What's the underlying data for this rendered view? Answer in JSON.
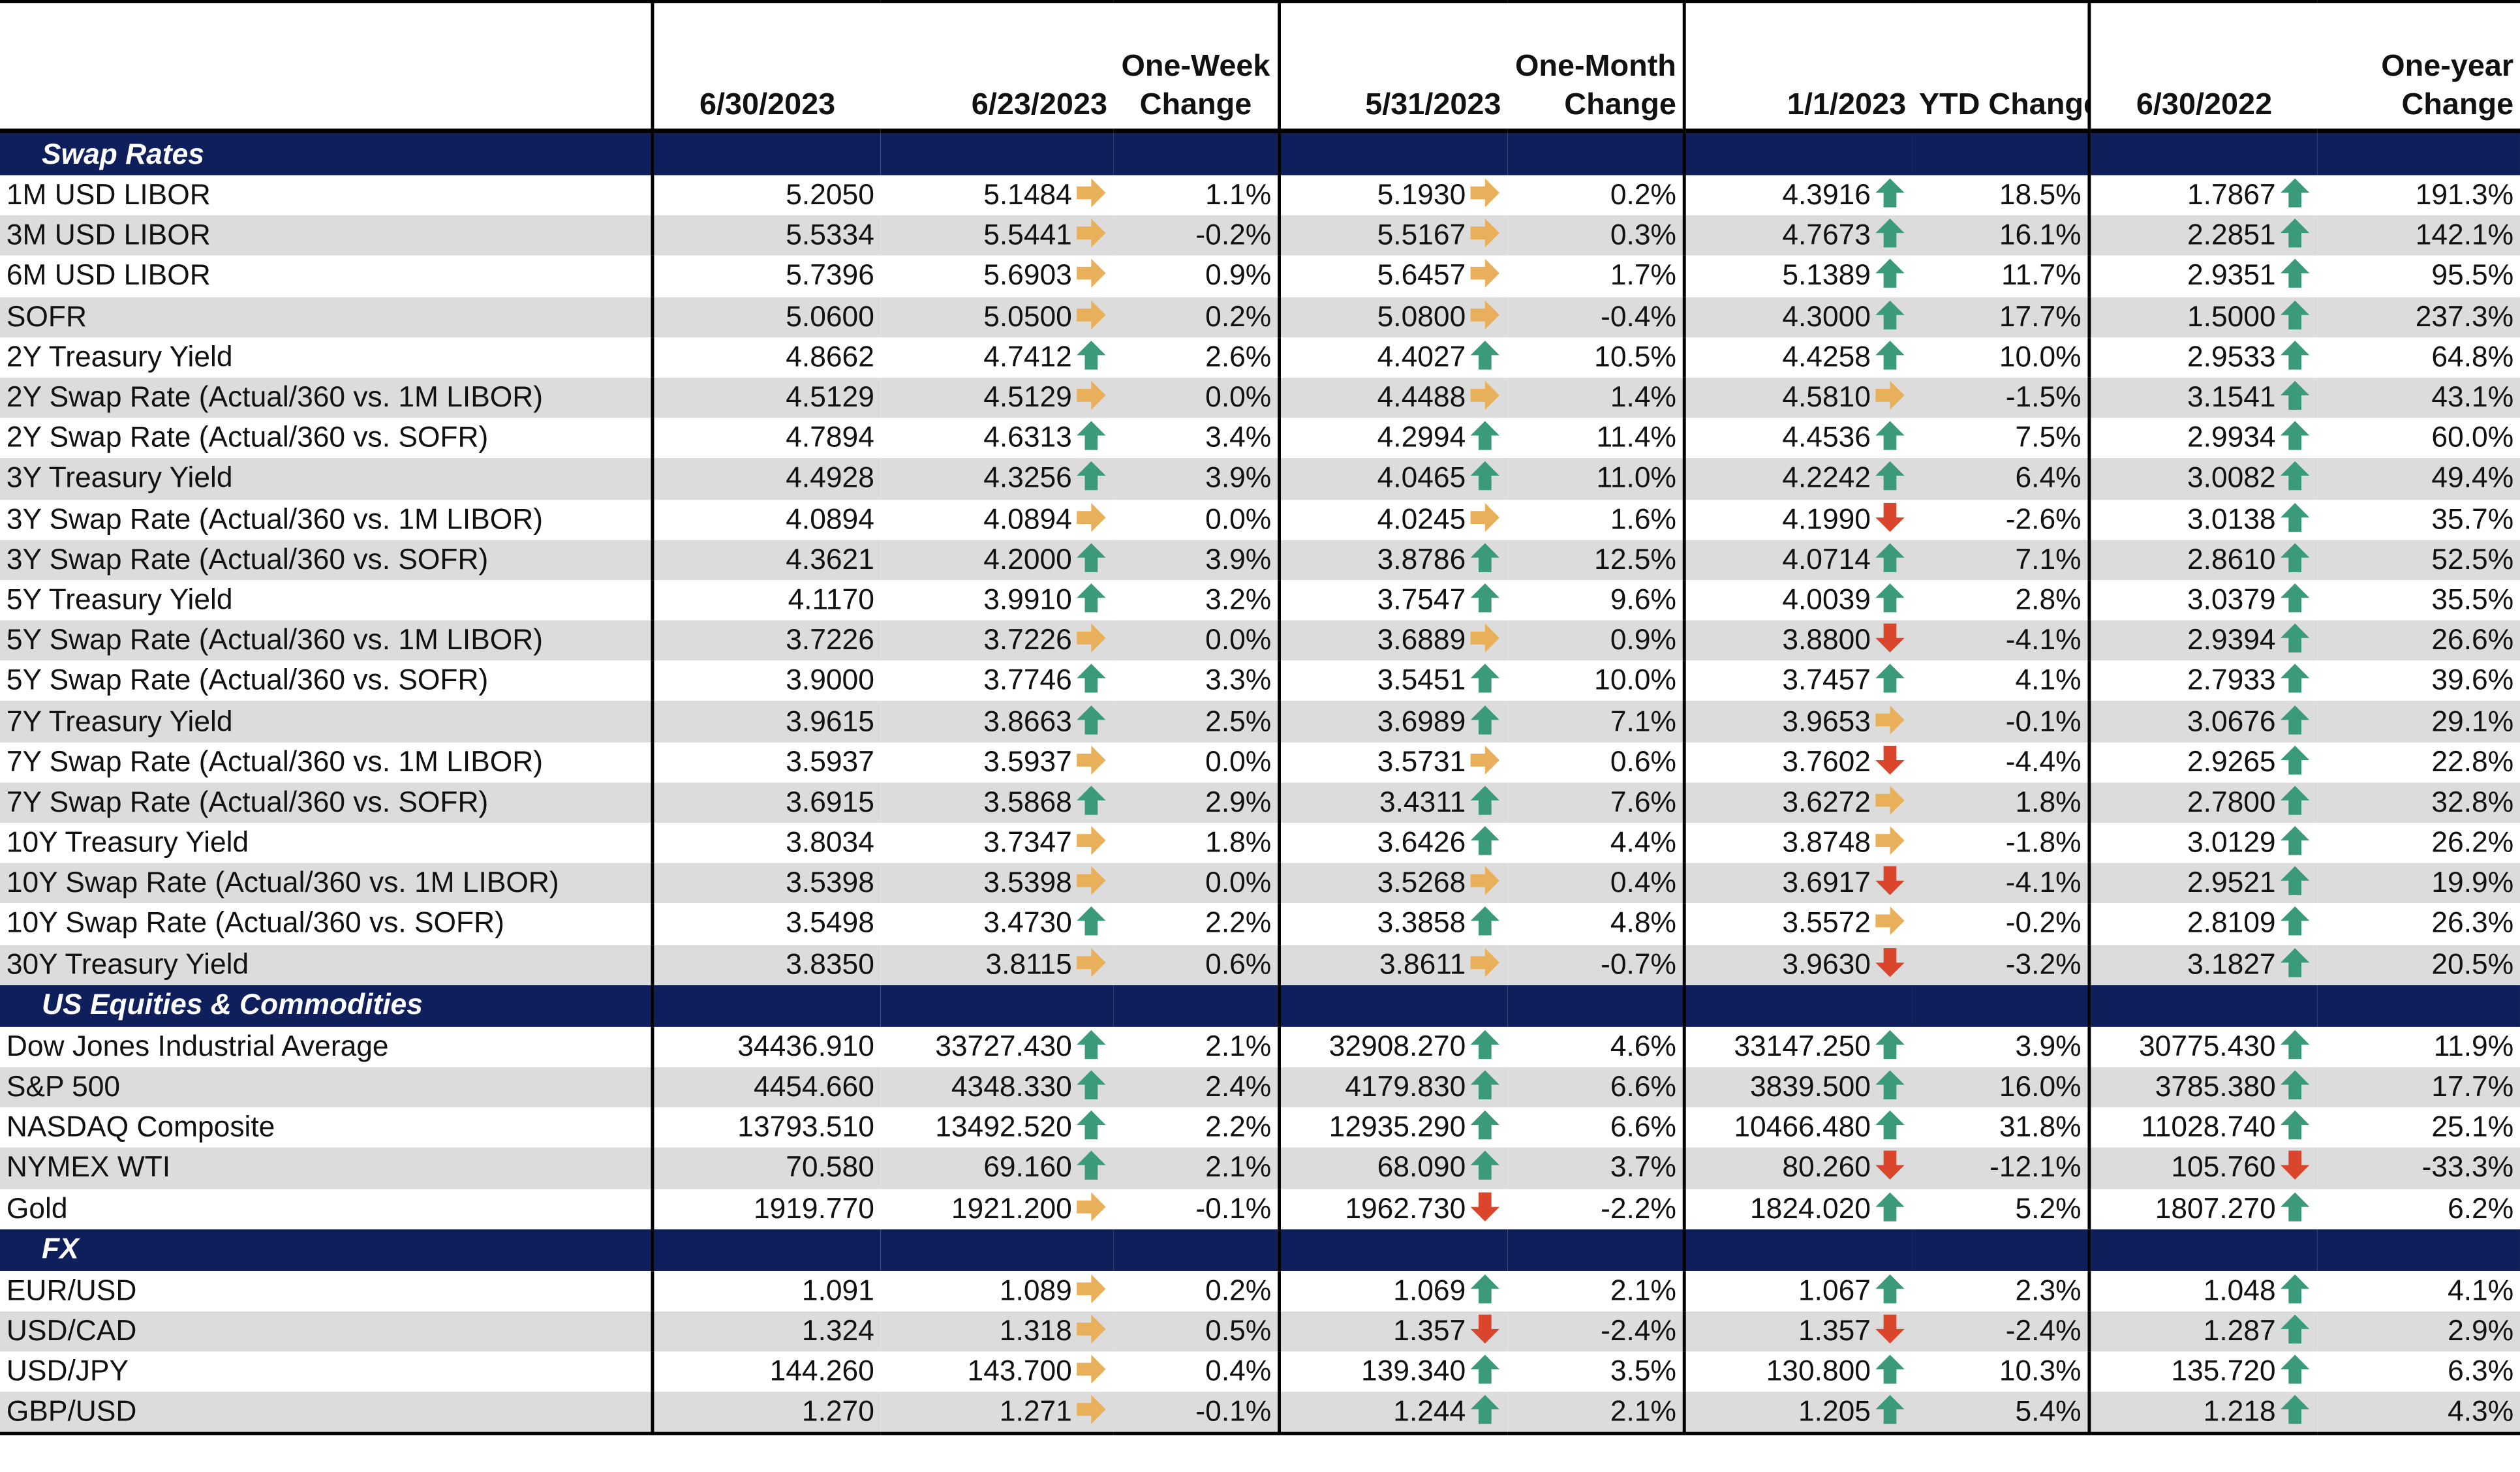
{
  "header": {
    "d1": "6/30/2023",
    "d2": "6/23/2023",
    "week_line1": "One-Week",
    "week_line2": "Change",
    "d3": "5/31/2023",
    "month_line1": "One-Month",
    "month_line2": "Change",
    "d4": "1/1/2023",
    "ytd": "YTD Change",
    "d5": "6/30/2022",
    "year_line1": "One-year",
    "year_line2": "Change"
  },
  "colors": {
    "section_bg": "#0e1f5b",
    "up": "#3a9a7a",
    "down": "#d9462b",
    "flat": "#e8b05a",
    "alt_row": "#dcdcdc"
  },
  "sections": [
    {
      "title": "Swap Rates",
      "rows": [
        [
          "1M USD LIBOR",
          "5.2050",
          "5.1484",
          "flat",
          "1.1%",
          "5.1930",
          "flat",
          "0.2%",
          "4.3916",
          "up",
          "18.5%",
          "1.7867",
          "up",
          "191.3%"
        ],
        [
          "3M USD LIBOR",
          "5.5334",
          "5.5441",
          "flat",
          "-0.2%",
          "5.5167",
          "flat",
          "0.3%",
          "4.7673",
          "up",
          "16.1%",
          "2.2851",
          "up",
          "142.1%"
        ],
        [
          "6M USD LIBOR",
          "5.7396",
          "5.6903",
          "flat",
          "0.9%",
          "5.6457",
          "flat",
          "1.7%",
          "5.1389",
          "up",
          "11.7%",
          "2.9351",
          "up",
          "95.5%"
        ],
        [
          "SOFR",
          "5.0600",
          "5.0500",
          "flat",
          "0.2%",
          "5.0800",
          "flat",
          "-0.4%",
          "4.3000",
          "up",
          "17.7%",
          "1.5000",
          "up",
          "237.3%"
        ],
        [
          "2Y Treasury Yield",
          "4.8662",
          "4.7412",
          "up",
          "2.6%",
          "4.4027",
          "up",
          "10.5%",
          "4.4258",
          "up",
          "10.0%",
          "2.9533",
          "up",
          "64.8%"
        ],
        [
          "2Y Swap Rate (Actual/360 vs. 1M LIBOR)",
          "4.5129",
          "4.5129",
          "flat",
          "0.0%",
          "4.4488",
          "flat",
          "1.4%",
          "4.5810",
          "flat",
          "-1.5%",
          "3.1541",
          "up",
          "43.1%"
        ],
        [
          "2Y Swap Rate (Actual/360 vs. SOFR)",
          "4.7894",
          "4.6313",
          "up",
          "3.4%",
          "4.2994",
          "up",
          "11.4%",
          "4.4536",
          "up",
          "7.5%",
          "2.9934",
          "up",
          "60.0%"
        ],
        [
          "3Y Treasury Yield",
          "4.4928",
          "4.3256",
          "up",
          "3.9%",
          "4.0465",
          "up",
          "11.0%",
          "4.2242",
          "up",
          "6.4%",
          "3.0082",
          "up",
          "49.4%"
        ],
        [
          "3Y Swap Rate (Actual/360 vs. 1M LIBOR)",
          "4.0894",
          "4.0894",
          "flat",
          "0.0%",
          "4.0245",
          "flat",
          "1.6%",
          "4.1990",
          "down",
          "-2.6%",
          "3.0138",
          "up",
          "35.7%"
        ],
        [
          "3Y Swap Rate (Actual/360 vs. SOFR)",
          "4.3621",
          "4.2000",
          "up",
          "3.9%",
          "3.8786",
          "up",
          "12.5%",
          "4.0714",
          "up",
          "7.1%",
          "2.8610",
          "up",
          "52.5%"
        ],
        [
          "5Y Treasury Yield",
          "4.1170",
          "3.9910",
          "up",
          "3.2%",
          "3.7547",
          "up",
          "9.6%",
          "4.0039",
          "up",
          "2.8%",
          "3.0379",
          "up",
          "35.5%"
        ],
        [
          "5Y Swap Rate (Actual/360 vs. 1M LIBOR)",
          "3.7226",
          "3.7226",
          "flat",
          "0.0%",
          "3.6889",
          "flat",
          "0.9%",
          "3.8800",
          "down",
          "-4.1%",
          "2.9394",
          "up",
          "26.6%"
        ],
        [
          "5Y Swap Rate (Actual/360 vs. SOFR)",
          "3.9000",
          "3.7746",
          "up",
          "3.3%",
          "3.5451",
          "up",
          "10.0%",
          "3.7457",
          "up",
          "4.1%",
          "2.7933",
          "up",
          "39.6%"
        ],
        [
          "7Y Treasury Yield",
          "3.9615",
          "3.8663",
          "up",
          "2.5%",
          "3.6989",
          "up",
          "7.1%",
          "3.9653",
          "flat",
          "-0.1%",
          "3.0676",
          "up",
          "29.1%"
        ],
        [
          "7Y Swap Rate (Actual/360 vs. 1M LIBOR)",
          "3.5937",
          "3.5937",
          "flat",
          "0.0%",
          "3.5731",
          "flat",
          "0.6%",
          "3.7602",
          "down",
          "-4.4%",
          "2.9265",
          "up",
          "22.8%"
        ],
        [
          "7Y Swap Rate (Actual/360 vs. SOFR)",
          "3.6915",
          "3.5868",
          "up",
          "2.9%",
          "3.4311",
          "up",
          "7.6%",
          "3.6272",
          "flat",
          "1.8%",
          "2.7800",
          "up",
          "32.8%"
        ],
        [
          "10Y Treasury Yield",
          "3.8034",
          "3.7347",
          "flat",
          "1.8%",
          "3.6426",
          "up",
          "4.4%",
          "3.8748",
          "flat",
          "-1.8%",
          "3.0129",
          "up",
          "26.2%"
        ],
        [
          "10Y Swap Rate (Actual/360 vs. 1M LIBOR)",
          "3.5398",
          "3.5398",
          "flat",
          "0.0%",
          "3.5268",
          "flat",
          "0.4%",
          "3.6917",
          "down",
          "-4.1%",
          "2.9521",
          "up",
          "19.9%"
        ],
        [
          "10Y Swap Rate (Actual/360 vs. SOFR)",
          "3.5498",
          "3.4730",
          "up",
          "2.2%",
          "3.3858",
          "up",
          "4.8%",
          "3.5572",
          "flat",
          "-0.2%",
          "2.8109",
          "up",
          "26.3%"
        ],
        [
          "30Y Treasury Yield",
          "3.8350",
          "3.8115",
          "flat",
          "0.6%",
          "3.8611",
          "flat",
          "-0.7%",
          "3.9630",
          "down",
          "-3.2%",
          "3.1827",
          "up",
          "20.5%"
        ]
      ]
    },
    {
      "title": "US Equities & Commodities",
      "rows": [
        [
          "Dow Jones Industrial Average",
          "34436.910",
          "33727.430",
          "up",
          "2.1%",
          "32908.270",
          "up",
          "4.6%",
          "33147.250",
          "up",
          "3.9%",
          "30775.430",
          "up",
          "11.9%"
        ],
        [
          "S&P 500",
          "4454.660",
          "4348.330",
          "up",
          "2.4%",
          "4179.830",
          "up",
          "6.6%",
          "3839.500",
          "up",
          "16.0%",
          "3785.380",
          "up",
          "17.7%"
        ],
        [
          "NASDAQ Composite",
          "13793.510",
          "13492.520",
          "up",
          "2.2%",
          "12935.290",
          "up",
          "6.6%",
          "10466.480",
          "up",
          "31.8%",
          "11028.740",
          "up",
          "25.1%"
        ],
        [
          "NYMEX WTI",
          "70.580",
          "69.160",
          "up",
          "2.1%",
          "68.090",
          "up",
          "3.7%",
          "80.260",
          "down",
          "-12.1%",
          "105.760",
          "down",
          "-33.3%"
        ],
        [
          "Gold",
          "1919.770",
          "1921.200",
          "flat",
          "-0.1%",
          "1962.730",
          "down",
          "-2.2%",
          "1824.020",
          "up",
          "5.2%",
          "1807.270",
          "up",
          "6.2%"
        ]
      ]
    },
    {
      "title": "FX",
      "rows": [
        [
          "EUR/USD",
          "1.091",
          "1.089",
          "flat",
          "0.2%",
          "1.069",
          "up",
          "2.1%",
          "1.067",
          "up",
          "2.3%",
          "1.048",
          "up",
          "4.1%"
        ],
        [
          "USD/CAD",
          "1.324",
          "1.318",
          "flat",
          "0.5%",
          "1.357",
          "down",
          "-2.4%",
          "1.357",
          "down",
          "-2.4%",
          "1.287",
          "up",
          "2.9%"
        ],
        [
          "USD/JPY",
          "144.260",
          "143.700",
          "flat",
          "0.4%",
          "139.340",
          "up",
          "3.5%",
          "130.800",
          "up",
          "10.3%",
          "135.720",
          "up",
          "6.3%"
        ],
        [
          "GBP/USD",
          "1.270",
          "1.271",
          "flat",
          "-0.1%",
          "1.244",
          "up",
          "2.1%",
          "1.205",
          "up",
          "5.4%",
          "1.218",
          "up",
          "4.3%"
        ]
      ]
    }
  ]
}
